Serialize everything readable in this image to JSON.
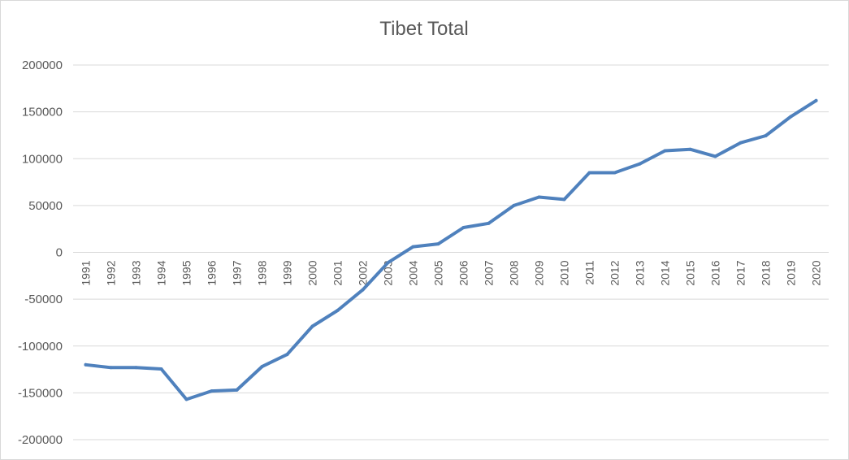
{
  "chart_data": {
    "type": "line",
    "title": "Tibet Total",
    "xlabel": "",
    "ylabel": "",
    "ylim": [
      -200000,
      200000
    ],
    "yticks": [
      200000,
      150000,
      100000,
      50000,
      0,
      -50000,
      -100000,
      -150000,
      -200000
    ],
    "grid": true,
    "legend": "none",
    "categories": [
      "1991",
      "1992",
      "1993",
      "1994",
      "1995",
      "1996",
      "1997",
      "1998",
      "1999",
      "2000",
      "2001",
      "2002",
      "2003",
      "2004",
      "2005",
      "2006",
      "2007",
      "2008",
      "2009",
      "2010",
      "2011",
      "2012",
      "2013",
      "2014",
      "2015",
      "2016",
      "2017",
      "2018",
      "2019",
      "2020"
    ],
    "series": [
      {
        "color": "#4f81bd",
        "values": [
          -120000,
          -123000,
          -123000,
          -124500,
          -157000,
          -148000,
          -147000,
          -122000,
          -109000,
          -79000,
          -62000,
          -40000,
          -11000,
          6000,
          9000,
          26500,
          31000,
          50000,
          59000,
          56500,
          85000,
          85000,
          94500,
          108500,
          110000,
          102500,
          117000,
          124500,
          145000,
          162000
        ]
      }
    ]
  }
}
